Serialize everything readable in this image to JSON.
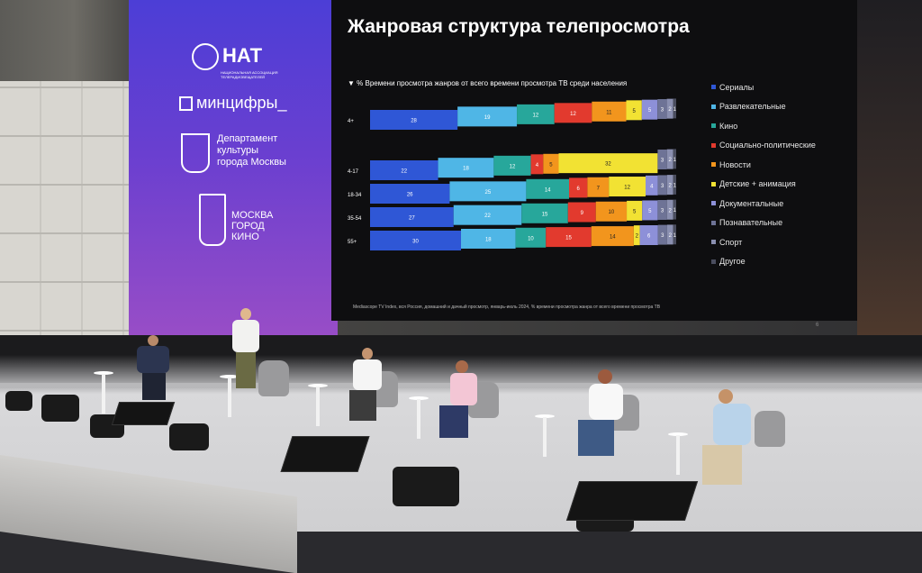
{
  "sidebar": {
    "logo1": "НАТ",
    "logo1_sub": "НАЦИОНАЛЬНАЯ АССОЦИАЦИЯ ТЕЛЕРАДИОВЕЩАТЕЛЕЙ",
    "logo2": "минцифры_",
    "logo3": "Департамент культуры города Москвы",
    "logo4": "МОСКВА ГОРОД КИНО"
  },
  "chart_data": {
    "type": "bar",
    "orientation": "horizontal",
    "stacked": true,
    "title": "Жанровая структура телепросмотра",
    "subtitle": "% Времени просмотра жанров от всего времени просмотра ТВ среди населения",
    "categories": [
      "4+",
      "4-17",
      "18-34",
      "35-54",
      "55+"
    ],
    "series": [
      {
        "name": "Сериалы",
        "color": "#2f57d6",
        "values": [
          28,
          22,
          26,
          27,
          30
        ]
      },
      {
        "name": "Развлекательные",
        "color": "#4fb6e6",
        "values": [
          19,
          18,
          25,
          22,
          18
        ]
      },
      {
        "name": "Кино",
        "color": "#27a79b",
        "values": [
          12,
          12,
          14,
          15,
          10
        ]
      },
      {
        "name": "Социально-политические",
        "color": "#e23a2e",
        "values": [
          12,
          4,
          6,
          9,
          15
        ]
      },
      {
        "name": "Новости",
        "color": "#f2951d",
        "values": [
          11,
          5,
          7,
          10,
          14
        ]
      },
      {
        "name": "Детские + анимация",
        "color": "#f2e233",
        "values": [
          5,
          32,
          12,
          5,
          2
        ]
      },
      {
        "name": "Документальные",
        "color": "#8d90d8",
        "values": [
          5,
          0,
          4,
          5,
          6
        ]
      },
      {
        "name": "Познавательные",
        "color": "#6e7396",
        "values": [
          3,
          3,
          3,
          3,
          3
        ]
      },
      {
        "name": "Спорт",
        "color": "#8a8fb0",
        "values": [
          2,
          2,
          2,
          2,
          2
        ]
      },
      {
        "name": "Другое",
        "color": "#4a4d5e",
        "values": [
          1,
          1,
          1,
          1,
          1
        ]
      }
    ],
    "source": "Mediascope TV Index, вся Россия, домашний и дачный просмотр, январь-июль 2024, % времени просмотра жанра от всего времени просмотра ТВ",
    "page_number": "6"
  }
}
